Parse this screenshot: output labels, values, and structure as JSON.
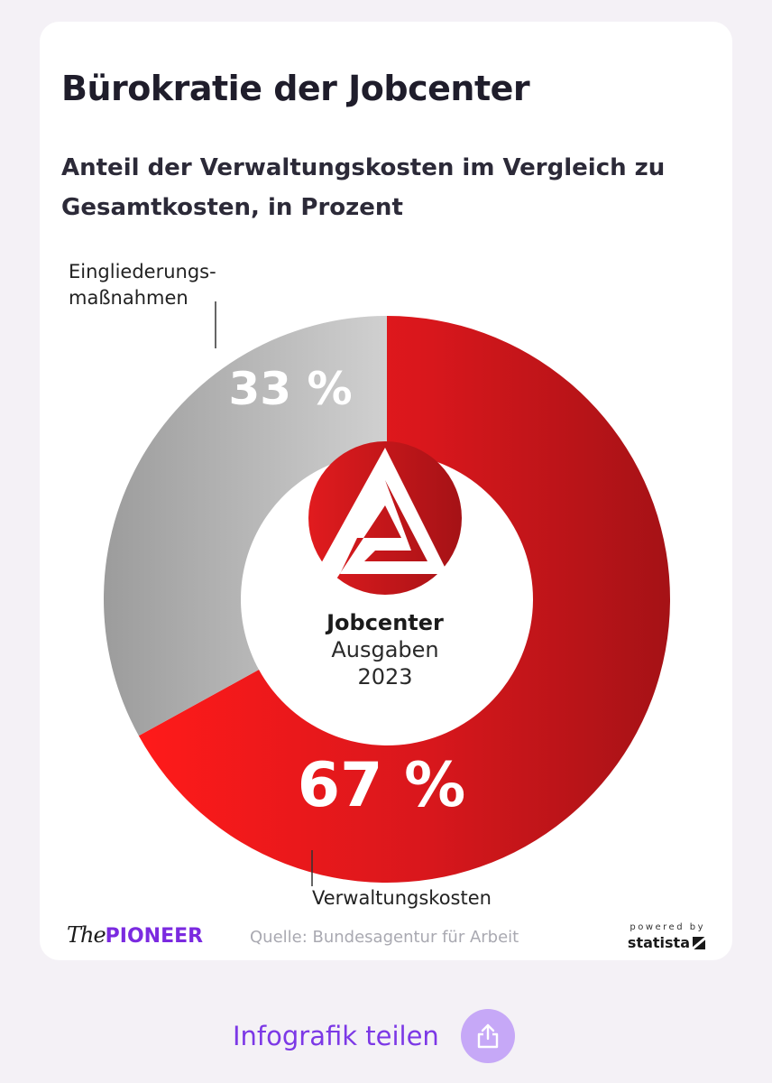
{
  "card": {
    "title": "Bürokratie der Jobcenter",
    "subtitle": "Anteil der Verwaltungskosten im Vergleich zu Gesamtkosten, in Prozent"
  },
  "chart_data": {
    "type": "pie",
    "variant": "donut",
    "title": "Bürokratie der Jobcenter",
    "subtitle": "Anteil der Verwaltungskosten im Vergleich zu Gesamtkosten, in Prozent",
    "slices": [
      {
        "name": "Verwaltungskosten",
        "value": 67,
        "label": "67 %",
        "color": "#d8171c"
      },
      {
        "name": "Eingliederungsmaßnahmen",
        "value": 33,
        "label": "33 %",
        "color": "#b9b9b9"
      }
    ],
    "labels": {
      "verwaltung": "Verwaltungskosten",
      "eingliederung_line1": "Eingliederungs-",
      "eingliederung_line2": "maßnahmen"
    },
    "center": {
      "line1": "Jobcenter",
      "line2": "Ausgaben",
      "line3": "2023",
      "logo": "bundesagentur-logo"
    }
  },
  "footer": {
    "brand_the": "The",
    "brand_pioneer": "PIONEER",
    "source": "Quelle: Bundesagentur für Arbeit",
    "powered_by": "powered by",
    "statista": "statista"
  },
  "share": {
    "label": "Infografik teilen",
    "icon": "share-icon"
  },
  "colors": {
    "accent": "#7c38e6",
    "share_bg": "#c6a8f7",
    "red": "#d8171c",
    "grey": "#b9b9b9"
  }
}
